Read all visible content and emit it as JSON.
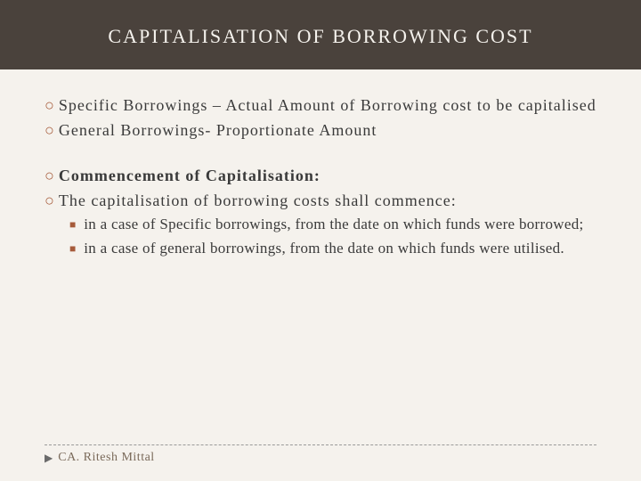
{
  "colors": {
    "background": "#f5f2ed",
    "title_bar_bg": "#4a423c",
    "title_text": "#f5f2ed",
    "body_text": "#3a3a3a",
    "accent": "#a65b3a",
    "footer_text": "#7a6a5a",
    "divider": "#999999"
  },
  "title": "CAPITALISATION OF BORROWING COST",
  "bullets": {
    "b1": "Specific Borrowings – Actual Amount of Borrowing cost to be capitalised",
    "b2": "General Borrowings- Proportionate Amount",
    "b3": "Commencement of Capitalisation:",
    "b4": " The capitalisation of borrowing costs shall commence:"
  },
  "sub_bullets": {
    "s1": " in a case of Specific borrowings, from the date on which funds were borrowed;",
    "s2": "in a case of general borrowings, from the date on which funds were utilised."
  },
  "footer": {
    "author": "CA. Ritesh Mittal"
  },
  "typography": {
    "title_fontsize": 22,
    "body_fontsize": 18,
    "sub_fontsize": 17,
    "footer_fontsize": 14,
    "title_letter_spacing": 2,
    "body_letter_spacing": 1
  }
}
